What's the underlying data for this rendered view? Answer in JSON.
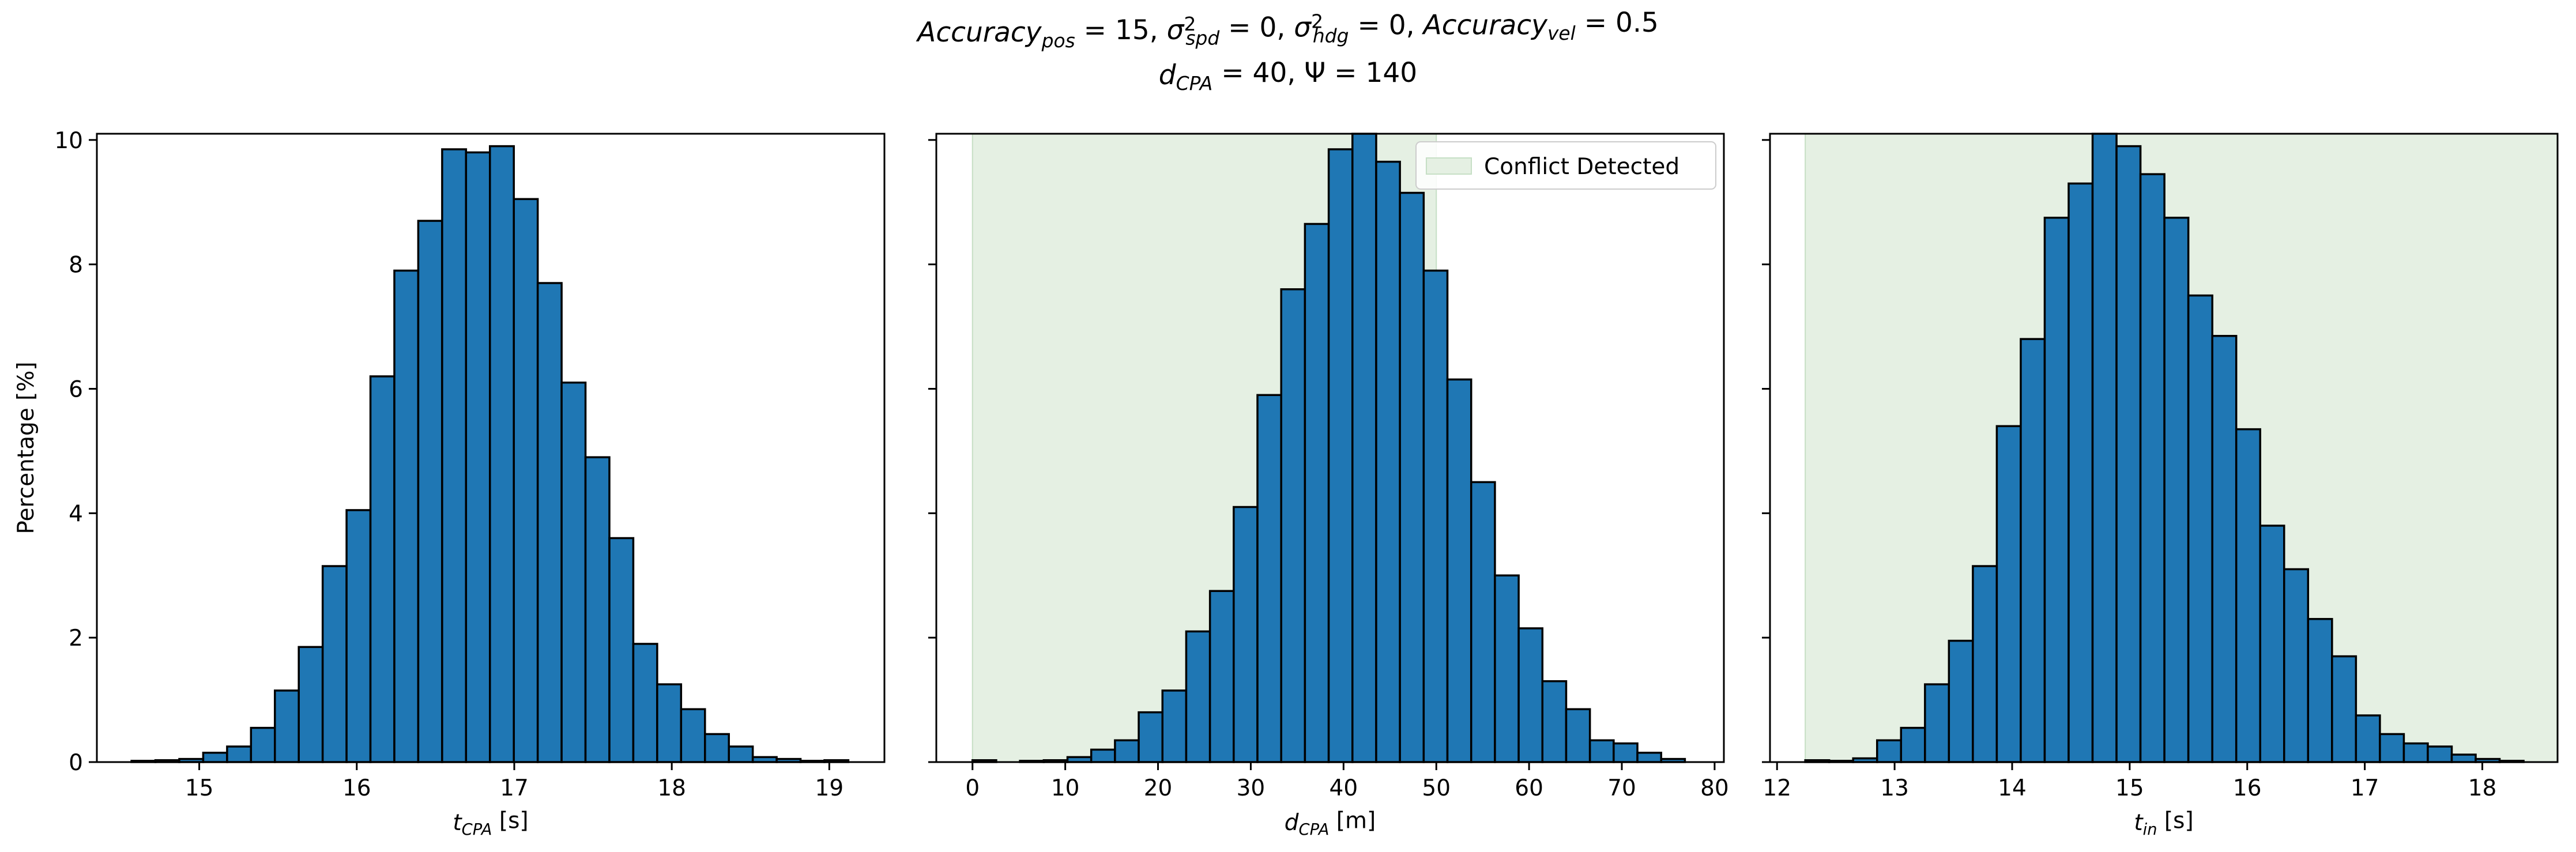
{
  "figure": {
    "title_line1": "Accuracy_pos = 15, σ²_spd = 0, σ²_hdg = 0, Accuracy_vel = 0.5",
    "title_line2": "d_CPA = 40, d_Ψ = 140"
  },
  "colors": {
    "bar_fill": "#1f77b4",
    "bar_edge": "#000000",
    "conflict_fill": "#e5f0e3",
    "conflict_edge": "#c6dfc5"
  },
  "chart_data": [
    {
      "type": "bar",
      "id": "tcpa",
      "xlabel": "t_CPA [s]",
      "ylabel": "Percentage [%]",
      "xlim": [
        14.35,
        19.35
      ],
      "ylim": [
        0,
        10.1
      ],
      "xticks": [
        15,
        16,
        17,
        18,
        19
      ],
      "xtick_labels": [
        "15",
        "16",
        "17",
        "18",
        "19"
      ],
      "yticks": [
        0,
        2,
        4,
        6,
        8,
        10
      ],
      "ytick_labels": [
        "0",
        "2",
        "4",
        "6",
        "8",
        "10"
      ],
      "bin_start": 14.57,
      "bin_width": 0.1517,
      "values": [
        0.02,
        0.03,
        0.05,
        0.15,
        0.25,
        0.55,
        1.15,
        1.85,
        3.15,
        4.05,
        6.2,
        7.9,
        8.7,
        9.85,
        9.8,
        9.9,
        9.05,
        7.7,
        6.1,
        4.9,
        3.6,
        1.9,
        1.25,
        0.85,
        0.45,
        0.25,
        0.08,
        0.05,
        0.02,
        0.03
      ],
      "conflict_region": null,
      "legend": null
    },
    {
      "type": "bar",
      "id": "dcpa",
      "xlabel": "d_CPA [m]",
      "ylabel": "",
      "xlim": [
        -3.9,
        81.0
      ],
      "ylim": [
        0,
        10.1
      ],
      "xticks": [
        0,
        10,
        20,
        30,
        40,
        50,
        60,
        70,
        80
      ],
      "xtick_labels": [
        "0",
        "10",
        "20",
        "30",
        "40",
        "50",
        "60",
        "70",
        "80"
      ],
      "yticks": [
        0,
        2,
        4,
        6,
        8,
        10
      ],
      "ytick_labels": [
        "",
        "",
        "",
        "",
        "",
        ""
      ],
      "bin_start": 0.0,
      "bin_width": 2.56,
      "values": [
        0.03,
        0.0,
        0.02,
        0.03,
        0.08,
        0.2,
        0.35,
        0.8,
        1.15,
        2.1,
        2.75,
        4.1,
        5.9,
        7.6,
        8.65,
        9.85,
        10.1,
        9.65,
        9.15,
        7.9,
        6.15,
        4.5,
        3.0,
        2.15,
        1.3,
        0.85,
        0.35,
        0.3,
        0.15,
        0.05
      ],
      "conflict_region": [
        0,
        50
      ],
      "legend": {
        "label": "Conflict Detected",
        "placement": "upper right"
      }
    },
    {
      "type": "bar",
      "id": "tin",
      "xlabel": "t_in [s]",
      "ylabel": "",
      "xlim": [
        11.94,
        18.64
      ],
      "ylim": [
        0,
        10.1
      ],
      "xticks": [
        12,
        13,
        14,
        15,
        16,
        17,
        18
      ],
      "xtick_labels": [
        "12",
        "13",
        "14",
        "15",
        "16",
        "17",
        "18"
      ],
      "yticks": [
        0,
        2,
        4,
        6,
        8,
        10
      ],
      "ytick_labels": [
        "",
        "",
        "",
        "",
        "",
        ""
      ],
      "bin_start": 12.24,
      "bin_width": 0.2037,
      "values": [
        0.03,
        0.02,
        0.06,
        0.35,
        0.55,
        1.25,
        1.95,
        3.15,
        5.4,
        6.8,
        8.75,
        9.3,
        10.1,
        9.9,
        9.45,
        8.75,
        7.5,
        6.85,
        5.35,
        3.8,
        3.1,
        2.3,
        1.7,
        0.75,
        0.45,
        0.3,
        0.25,
        0.12,
        0.05,
        0.02
      ],
      "conflict_region": [
        12.24,
        18.64
      ],
      "legend": null
    }
  ]
}
